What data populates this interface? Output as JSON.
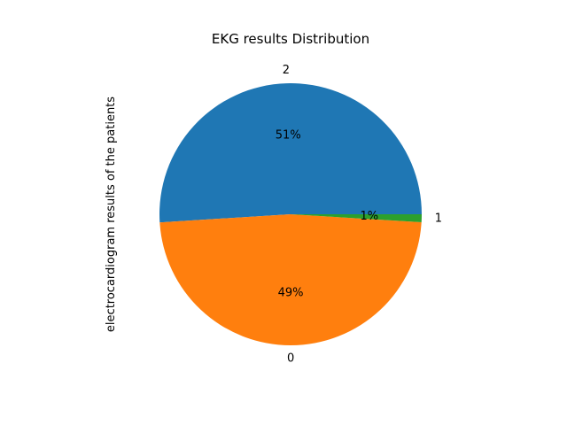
{
  "chart_data": {
    "type": "pie",
    "title": "EKG results Distribution",
    "ylabel": "electrocardiogram results of the patients",
    "slices": [
      {
        "label": "2",
        "percent_text": "51%",
        "value": 0.5099,
        "color": "#1f77b4"
      },
      {
        "label": "0",
        "percent_text": "49%",
        "value": 0.4804,
        "color": "#ff7f0e"
      },
      {
        "label": "1",
        "percent_text": "1%",
        "value": 0.0097,
        "color": "#2ca02c"
      }
    ],
    "start_angle_deg": 0,
    "direction": "counterclockwise"
  }
}
